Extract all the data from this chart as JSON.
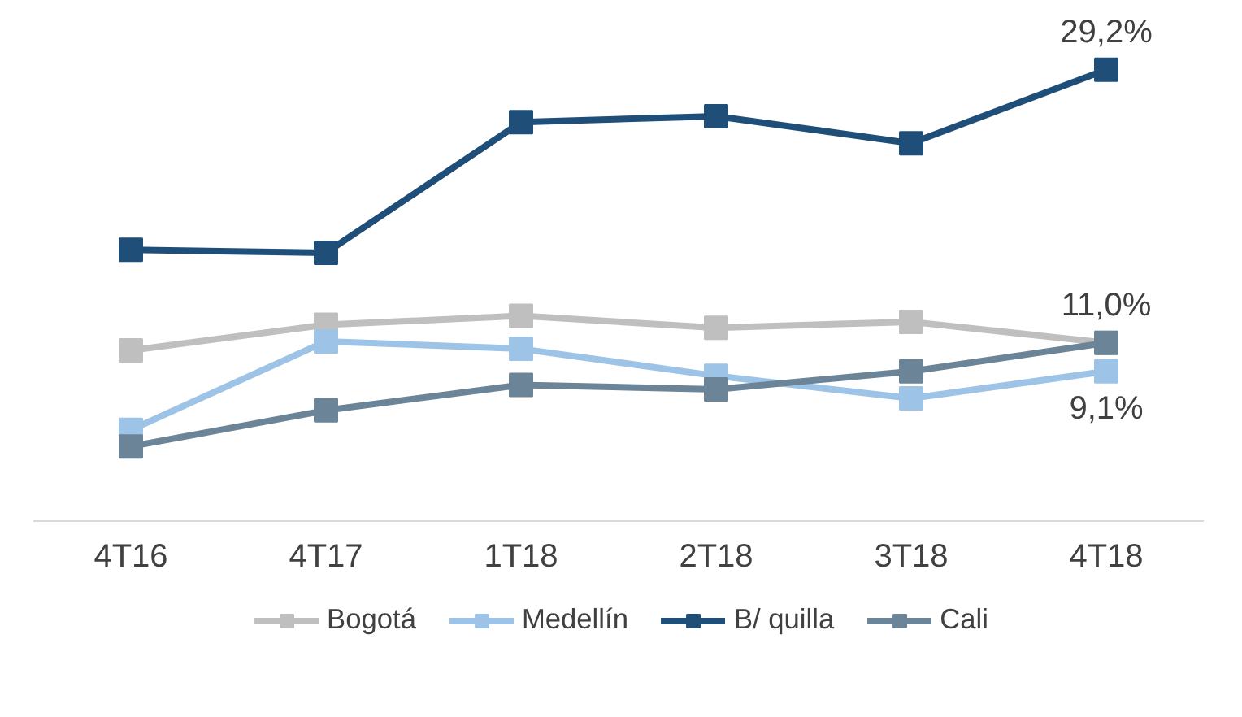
{
  "chart_data": {
    "type": "line",
    "categories": [
      "4T16",
      "4T17",
      "1T18",
      "2T18",
      "3T18",
      "4T18"
    ],
    "series": [
      {
        "name": "Bogotá",
        "color": "#bfbfbf",
        "values": [
          10.5,
          12.2,
          12.8,
          12.0,
          12.4,
          11.0
        ]
      },
      {
        "name": "Medellín",
        "color": "#9dc3e6",
        "values": [
          5.2,
          11.1,
          10.6,
          8.8,
          7.3,
          9.1
        ],
        "value_labels": [
          null,
          null,
          null,
          null,
          null,
          "9,1%"
        ]
      },
      {
        "name": "B/ quilla",
        "color": "#1f4e79",
        "values": [
          17.2,
          17.0,
          25.7,
          26.1,
          24.3,
          29.2
        ],
        "value_labels": [
          null,
          null,
          null,
          null,
          null,
          "29,2%"
        ]
      },
      {
        "name": "Cali",
        "color": "#6b8497",
        "values": [
          4.1,
          6.5,
          8.2,
          7.9,
          9.1,
          11.0
        ],
        "value_labels": [
          null,
          null,
          null,
          null,
          null,
          "11,0%"
        ]
      }
    ],
    "marker": "square",
    "line_style": "solid",
    "grid": false,
    "legend": "bottom"
  }
}
